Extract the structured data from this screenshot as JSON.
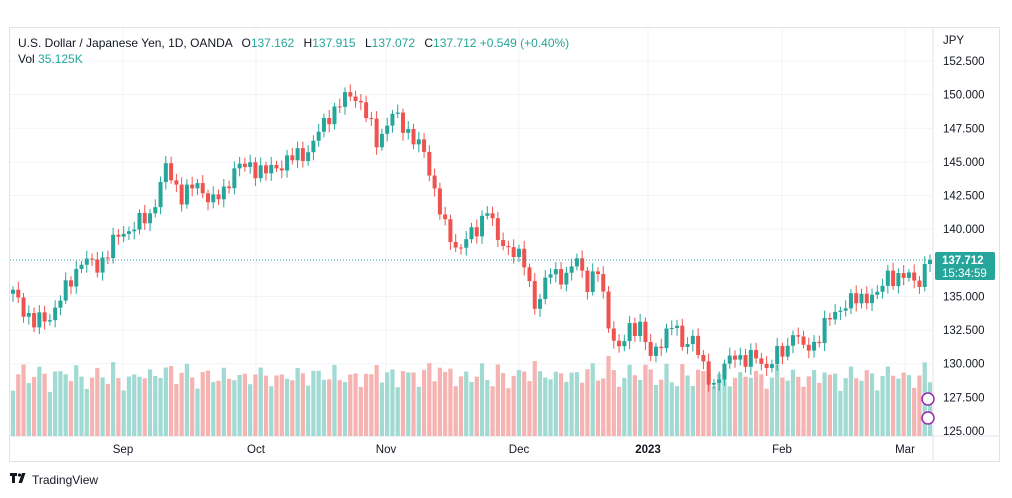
{
  "legend": {
    "symbol": "U.S. Dollar / Japanese Yen, 1D, OANDA",
    "o_label": "O",
    "o_value": "137.162",
    "h_label": "H",
    "h_value": "137.915",
    "l_label": "L",
    "l_value": "137.072",
    "c_label": "C",
    "c_value": "137.712",
    "change": "+0.549 (+0.40%)",
    "vol_label": "Vol",
    "vol_value": "35.125K"
  },
  "footer": {
    "logo_icon": "tradingview-logo-icon",
    "brand": "TradingView"
  },
  "colors": {
    "up": "#26a69a",
    "down": "#ef5350",
    "up_vol": "#a1d9d3",
    "down_vol": "#f5b3b1",
    "price_line": "#26a69a"
  },
  "chart_data": {
    "type": "candlestick",
    "y_axis": {
      "unit": "JPY",
      "ticks": [
        "152.500",
        "150.000",
        "147.500",
        "145.000",
        "142.500",
        "140.000",
        "137.500",
        "135.000",
        "132.500",
        "130.000",
        "127.500",
        "125.000"
      ],
      "range": [
        125.0,
        153.5
      ]
    },
    "x_axis": {
      "ticks": [
        {
          "label": "Sep",
          "bold": false
        },
        {
          "label": "Oct",
          "bold": false
        },
        {
          "label": "Nov",
          "bold": false
        },
        {
          "label": "Dec",
          "bold": false
        },
        {
          "label": "2023",
          "bold": true
        },
        {
          "label": "Feb",
          "bold": false
        },
        {
          "label": "Mar",
          "bold": false
        }
      ]
    },
    "last_price": {
      "value": "137.712",
      "countdown": "15:34:59"
    },
    "grid": true,
    "anchors": [
      [
        0,
        135.2
      ],
      [
        4,
        133.0
      ],
      [
        7,
        133.5
      ],
      [
        10,
        135.5
      ],
      [
        13,
        137.7
      ],
      [
        16,
        137.2
      ],
      [
        20,
        139.5
      ],
      [
        26,
        141.0
      ],
      [
        29,
        144.5
      ],
      [
        32,
        142.5
      ],
      [
        35,
        143.3
      ],
      [
        38,
        142.0
      ],
      [
        40,
        142.8
      ],
      [
        42,
        144.5
      ],
      [
        45,
        144.7
      ],
      [
        48,
        144.2
      ],
      [
        52,
        145.1
      ],
      [
        56,
        145.8
      ],
      [
        60,
        148.5
      ],
      [
        63,
        149.7
      ],
      [
        65,
        150.0
      ],
      [
        67,
        148.5
      ],
      [
        69,
        146.5
      ],
      [
        72,
        148.5
      ],
      [
        75,
        147.3
      ],
      [
        78,
        145.6
      ],
      [
        80,
        143.0
      ],
      [
        82,
        140.0
      ],
      [
        84,
        138.6
      ],
      [
        86,
        139.3
      ],
      [
        88,
        139.8
      ],
      [
        90,
        141.8
      ],
      [
        92,
        139.0
      ],
      [
        95,
        138.5
      ],
      [
        97,
        137.3
      ],
      [
        99,
        134.5
      ],
      [
        100,
        135.0
      ],
      [
        102,
        136.8
      ],
      [
        105,
        136.5
      ],
      [
        107,
        137.7
      ],
      [
        109,
        136.0
      ],
      [
        111,
        136.8
      ],
      [
        113,
        133.0
      ],
      [
        115,
        131.0
      ],
      [
        117,
        132.5
      ],
      [
        119,
        133.0
      ],
      [
        121,
        130.3
      ],
      [
        123,
        131.8
      ],
      [
        125,
        132.9
      ],
      [
        127,
        131.5
      ],
      [
        129,
        132.0
      ],
      [
        131,
        129.5
      ],
      [
        133,
        128.5
      ],
      [
        135,
        129.7
      ],
      [
        137,
        130.8
      ],
      [
        139,
        130.2
      ],
      [
        141,
        130.5
      ],
      [
        143,
        129.8
      ],
      [
        145,
        130.6
      ],
      [
        147,
        131.2
      ],
      [
        148,
        132.6
      ],
      [
        150,
        131.0
      ],
      [
        152,
        131.5
      ],
      [
        154,
        132.8
      ],
      [
        156,
        133.8
      ],
      [
        158,
        134.5
      ],
      [
        160,
        134.7
      ],
      [
        162,
        135.1
      ],
      [
        164,
        135.0
      ],
      [
        166,
        136.7
      ],
      [
        168,
        136.3
      ],
      [
        170,
        136.5
      ],
      [
        172,
        136.2
      ],
      [
        174,
        137.7
      ]
    ],
    "candle_count": 175,
    "volume_range": [
      0,
      1.0
    ]
  }
}
